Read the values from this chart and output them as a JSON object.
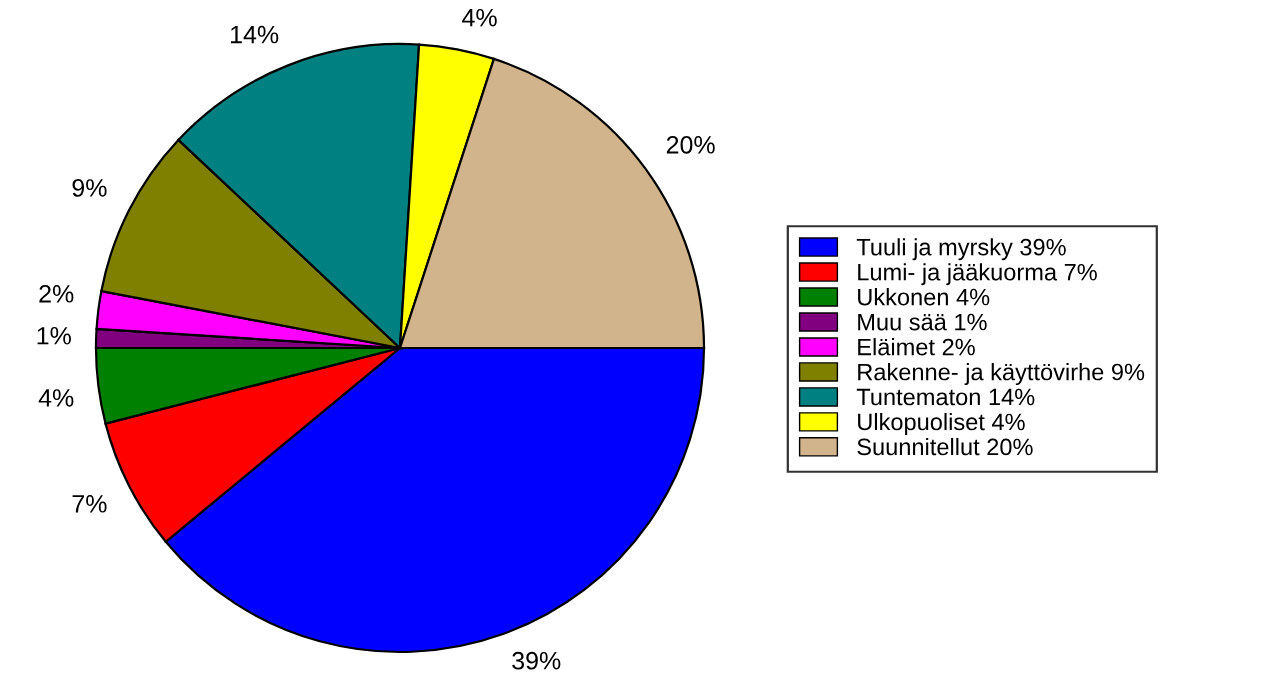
{
  "chart_data": {
    "type": "pie",
    "categories": [
      "Tuuli ja myrsky 39%",
      "Lumi- ja jääkuorma 7%",
      "Ukkonen 4%",
      "Muu sää 1%",
      "Eläimet 2%",
      "Rakenne- ja käyttövirhe 9%",
      "Tuntematon 14%",
      "Ulkopuoliset 4%",
      "Suunnitellut 20%"
    ],
    "values": [
      39,
      7,
      4,
      1,
      2,
      9,
      14,
      4,
      20
    ],
    "value_labels": [
      "39%",
      "7%",
      "4%",
      "1%",
      "2%",
      "9%",
      "14%",
      "4%",
      "20%"
    ],
    "colors": [
      "#0000ff",
      "#ff0000",
      "#008000",
      "#800080",
      "#ff00ff",
      "#808000",
      "#008080",
      "#ffff00",
      "#d2b48c"
    ],
    "legend": "right"
  }
}
